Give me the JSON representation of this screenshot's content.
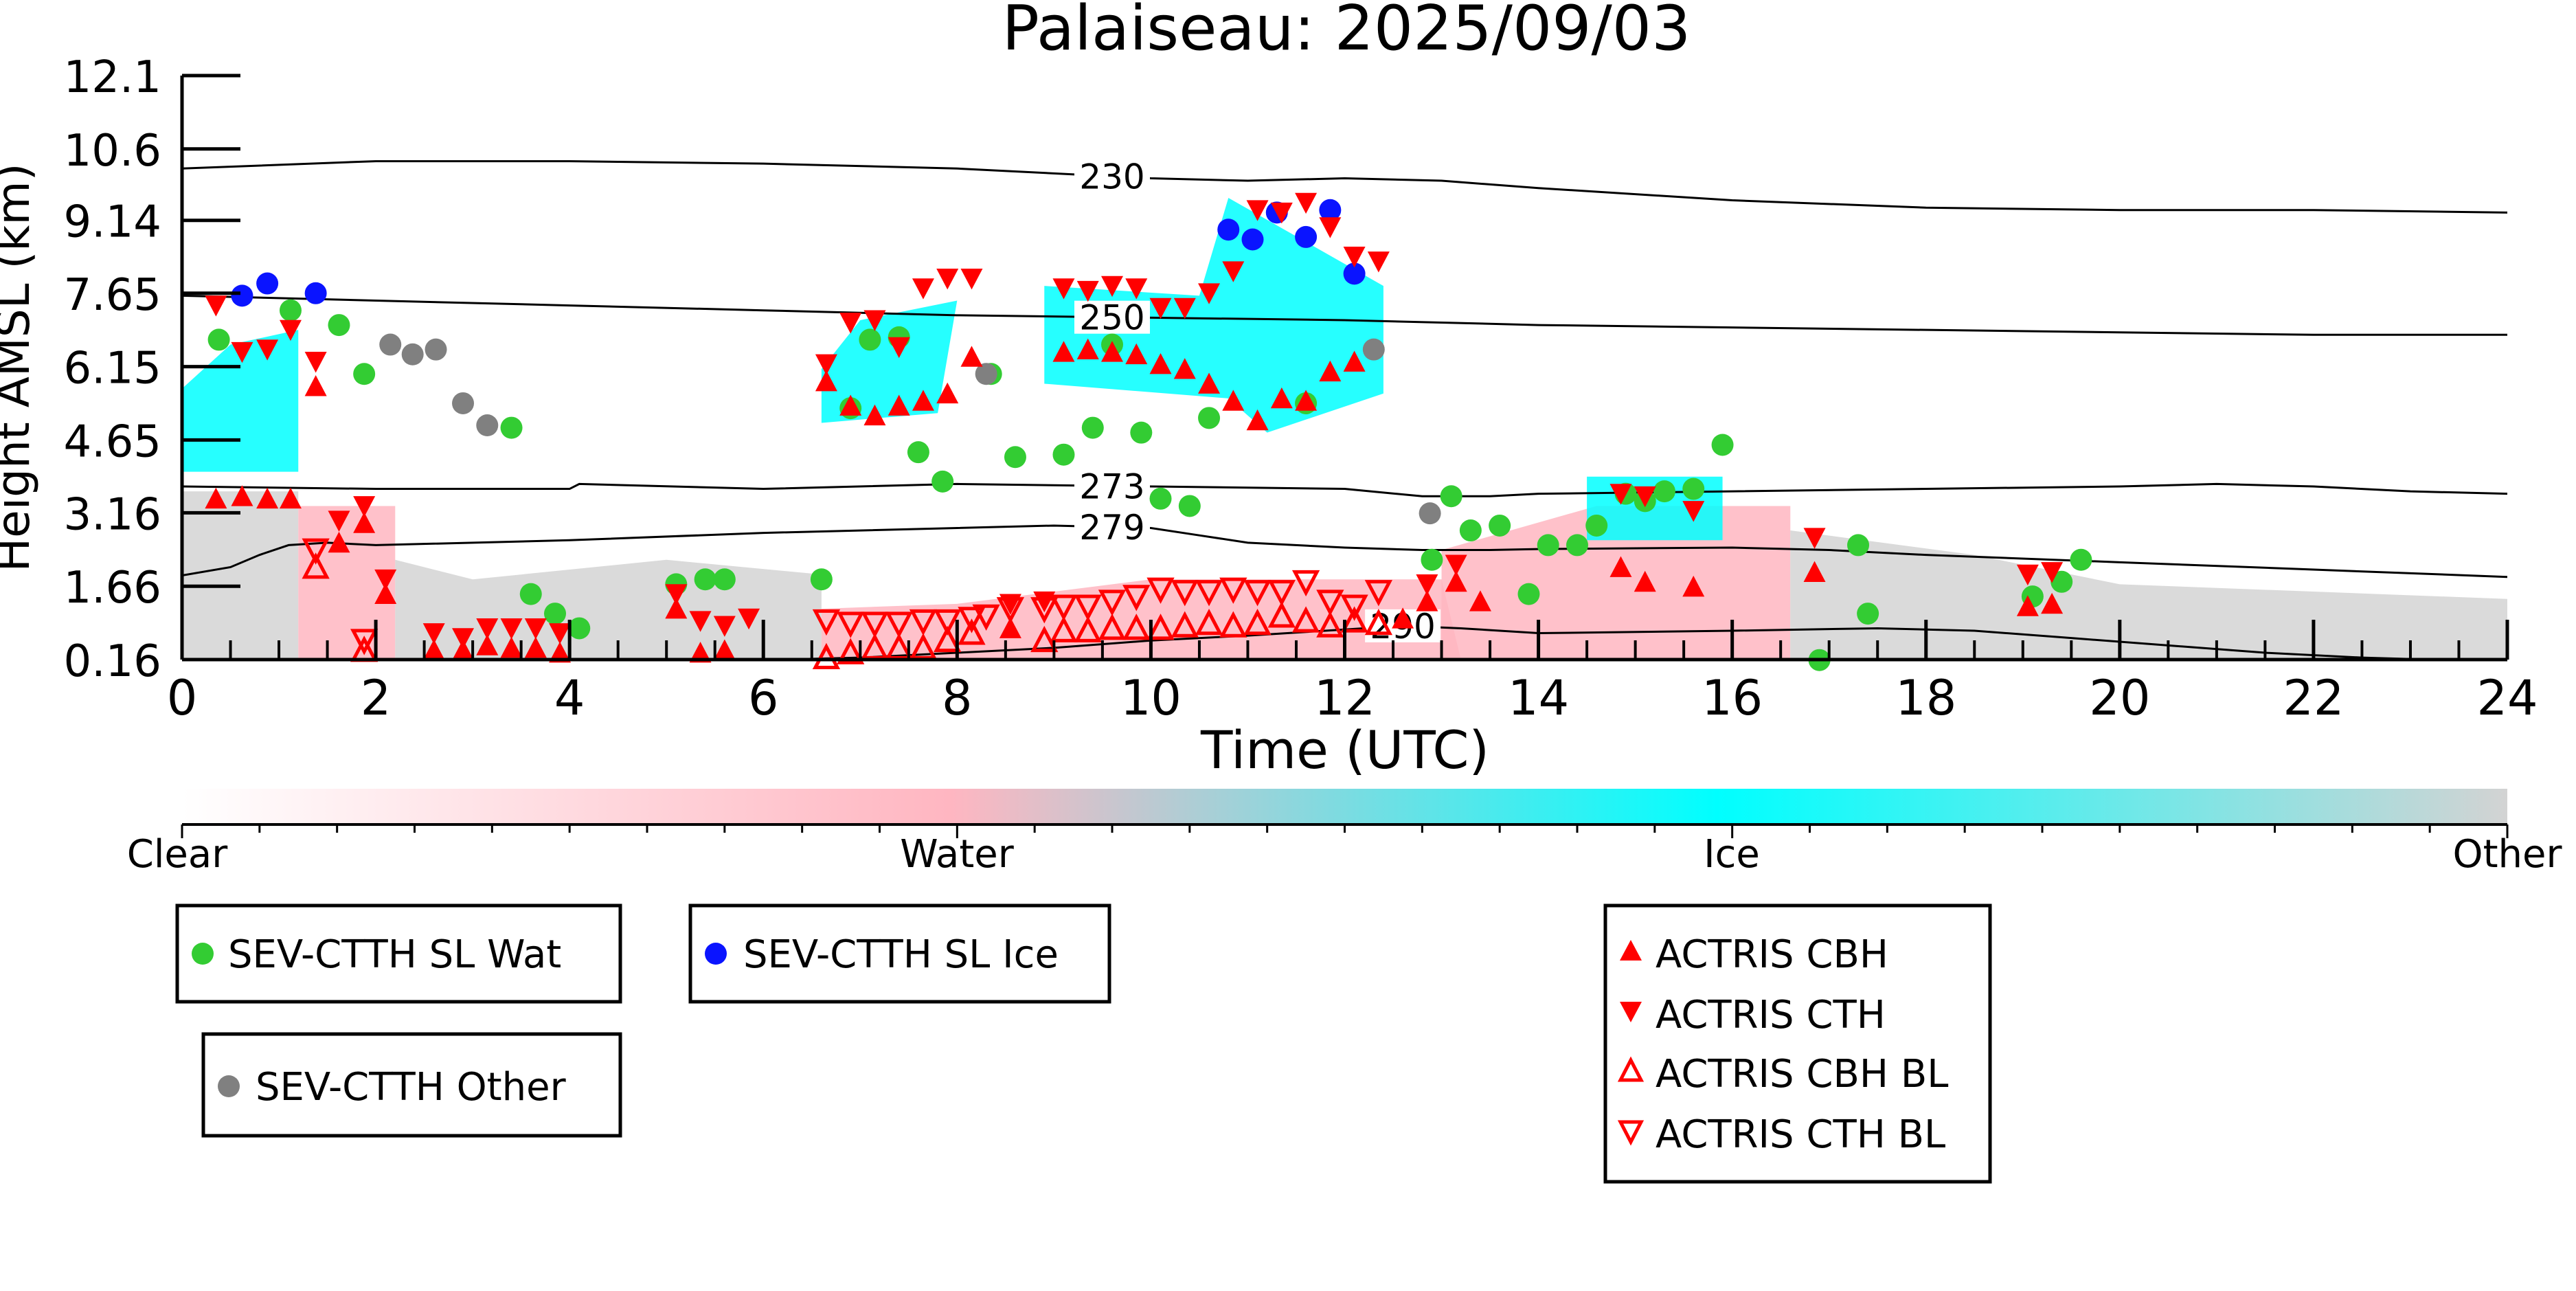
{
  "chart_data": {
    "type": "scatter",
    "title": "Palaiseau: 2025/09/03",
    "xlabel": "Time (UTC)",
    "ylabel": "Height AMSL (km)",
    "xlim": [
      0,
      24
    ],
    "ylim": [
      0.16,
      12.1
    ],
    "xticks": [
      "0",
      "2",
      "4",
      "6",
      "8",
      "10",
      "12",
      "14",
      "16",
      "18",
      "20",
      "22",
      "24"
    ],
    "xtick_values": [
      0,
      2,
      4,
      6,
      8,
      10,
      12,
      14,
      16,
      18,
      20,
      22,
      24
    ],
    "yticks": [
      "0.16",
      "1.66",
      "3.16",
      "4.65",
      "6.15",
      "7.65",
      "9.14",
      "10.6",
      "12.1"
    ],
    "ytick_values": [
      0.16,
      1.66,
      3.16,
      4.65,
      6.15,
      7.65,
      9.14,
      10.6,
      12.1
    ],
    "grid": false,
    "colorbar": {
      "labels": [
        "Clear",
        "Water",
        "Ice",
        "Other"
      ],
      "colors": [
        "#ffffff",
        "#ffb6c1",
        "#00ffff",
        "#d3d3d3"
      ]
    },
    "contours": [
      {
        "label": "230",
        "label_x": 9.6,
        "x": [
          0,
          2,
          4,
          6,
          8,
          10,
          11,
          12,
          13,
          14,
          16,
          18,
          20,
          22,
          24
        ],
        "y": [
          10.2,
          10.35,
          10.35,
          10.3,
          10.2,
          10.0,
          9.95,
          10.0,
          9.95,
          9.8,
          9.55,
          9.4,
          9.35,
          9.35,
          9.3
        ]
      },
      {
        "label": "250",
        "label_x": 9.6,
        "x": [
          0,
          2,
          4,
          6,
          8,
          10,
          12,
          14,
          16,
          18,
          20,
          22,
          24
        ],
        "y": [
          7.6,
          7.5,
          7.4,
          7.3,
          7.2,
          7.15,
          7.1,
          7.0,
          6.95,
          6.9,
          6.85,
          6.8,
          6.8
        ]
      },
      {
        "label": "273",
        "label_x": 9.6,
        "x": [
          0,
          2,
          4,
          4.1,
          6,
          8,
          10,
          12,
          12.8,
          13.5,
          14,
          16,
          18,
          20,
          21,
          22,
          23,
          24
        ],
        "y": [
          3.7,
          3.65,
          3.65,
          3.75,
          3.65,
          3.75,
          3.7,
          3.65,
          3.5,
          3.5,
          3.55,
          3.6,
          3.65,
          3.7,
          3.75,
          3.7,
          3.6,
          3.55
        ]
      },
      {
        "label": "279",
        "label_x": 9.6,
        "x": [
          0,
          0.5,
          0.8,
          1.1,
          1.5,
          2,
          4,
          6,
          8,
          9,
          10,
          10.5,
          11,
          12,
          12.8,
          13.5,
          14,
          16,
          17,
          18,
          20,
          22,
          24
        ],
        "y": [
          1.88,
          2.05,
          2.3,
          2.5,
          2.55,
          2.5,
          2.6,
          2.75,
          2.85,
          2.9,
          2.85,
          2.7,
          2.55,
          2.45,
          2.4,
          2.4,
          2.42,
          2.45,
          2.4,
          2.3,
          2.15,
          2.0,
          1.85
        ]
      },
      {
        "label": "290",
        "label_x": 12.6,
        "x": [
          6.2,
          7,
          8,
          9,
          10,
          11,
          11.8,
          12.6,
          13.2,
          14,
          16,
          17.5,
          18.5,
          19.5,
          20.5,
          21.5,
          22.5,
          23.2
        ],
        "y": [
          0.16,
          0.2,
          0.3,
          0.4,
          0.55,
          0.65,
          0.75,
          0.85,
          0.8,
          0.7,
          0.75,
          0.8,
          0.75,
          0.6,
          0.45,
          0.3,
          0.2,
          0.16
        ]
      }
    ],
    "series": [
      {
        "name": "SEV-CTTH SL Wat",
        "marker": "circle",
        "color": "#33cc33",
        "x": [
          0.38,
          1.12,
          1.62,
          1.88,
          3.4,
          3.6,
          3.85,
          4.1,
          5.1,
          5.4,
          5.6,
          6.6,
          6.9,
          7.1,
          7.4,
          7.6,
          7.85,
          8.35,
          8.6,
          9.1,
          9.4,
          9.6,
          9.9,
          10.1,
          10.4,
          10.6,
          11.6,
          12.9,
          13.1,
          13.3,
          13.6,
          13.9,
          14.1,
          14.4,
          14.6,
          14.9,
          15.1,
          15.3,
          15.6,
          15.9,
          16.9,
          17.3,
          17.4,
          19.1,
          19.4,
          19.6
        ],
        "y": [
          6.7,
          7.3,
          7.0,
          6.0,
          4.9,
          1.5,
          1.1,
          0.8,
          1.7,
          1.8,
          1.8,
          1.8,
          5.3,
          6.7,
          6.75,
          4.4,
          3.8,
          6.0,
          4.3,
          4.35,
          4.9,
          6.6,
          4.8,
          3.45,
          3.3,
          5.1,
          5.4,
          2.2,
          3.5,
          2.8,
          2.9,
          1.5,
          2.5,
          2.5,
          2.9,
          3.55,
          3.4,
          3.6,
          3.65,
          4.55,
          0.15,
          2.5,
          1.1,
          1.45,
          1.75,
          2.2
        ]
      },
      {
        "name": "SEV-CTTH SL Ice",
        "marker": "circle",
        "color": "#0a14ff",
        "x": [
          0.62,
          0.88,
          1.38,
          10.8,
          11.05,
          11.3,
          11.6,
          11.85,
          12.1
        ],
        "y": [
          7.6,
          7.85,
          7.65,
          8.95,
          8.75,
          9.3,
          8.8,
          9.35,
          8.05
        ]
      },
      {
        "name": "SEV-CTTH Other",
        "marker": "circle",
        "color": "#808080",
        "x": [
          2.15,
          2.38,
          2.62,
          2.9,
          3.15,
          8.3,
          12.3,
          12.88
        ],
        "y": [
          6.6,
          6.4,
          6.5,
          5.4,
          4.95,
          6.0,
          6.5,
          3.15
        ]
      },
      {
        "name": "ACTRIS CBH",
        "marker": "triangle-up",
        "filled": true,
        "color": "#ff0000",
        "x": [
          0.35,
          0.62,
          0.88,
          1.12,
          1.38,
          1.62,
          1.88,
          2.1,
          2.6,
          2.9,
          3.15,
          3.4,
          3.65,
          3.9,
          5.1,
          5.35,
          5.6,
          6.65,
          6.9,
          7.15,
          7.4,
          7.65,
          7.9,
          8.15,
          8.55,
          9.1,
          9.35,
          9.6,
          9.85,
          10.1,
          10.35,
          10.6,
          10.85,
          11.1,
          11.35,
          11.6,
          11.85,
          12.1,
          12.6,
          12.85,
          13.15,
          13.4,
          14.85,
          15.1,
          15.6,
          16.85,
          19.05,
          19.3
        ],
        "y": [
          3.45,
          3.5,
          3.45,
          3.45,
          5.75,
          2.55,
          2.95,
          1.5,
          0.35,
          0.35,
          0.45,
          0.4,
          0.4,
          0.3,
          1.2,
          0.3,
          0.35,
          5.85,
          5.35,
          5.15,
          5.35,
          5.45,
          5.6,
          6.35,
          0.8,
          6.45,
          6.5,
          6.45,
          6.4,
          6.2,
          6.1,
          5.8,
          5.45,
          5.05,
          5.5,
          5.45,
          6.05,
          6.25,
          1.0,
          1.35,
          1.75,
          1.35,
          2.05,
          1.75,
          1.65,
          1.95,
          1.25,
          1.3
        ]
      },
      {
        "name": "ACTRIS CTH",
        "marker": "triangle-down",
        "filled": true,
        "color": "#ff0000",
        "x": [
          0.35,
          0.62,
          0.88,
          1.12,
          1.38,
          1.62,
          1.88,
          2.1,
          2.6,
          2.9,
          3.15,
          3.4,
          3.65,
          3.9,
          5.1,
          5.35,
          5.6,
          5.85,
          6.65,
          6.9,
          7.15,
          7.4,
          7.65,
          7.9,
          8.15,
          8.55,
          8.9,
          9.1,
          9.35,
          9.6,
          9.85,
          10.1,
          10.35,
          10.6,
          10.85,
          11.1,
          11.35,
          11.6,
          11.85,
          12.1,
          12.35,
          12.85,
          13.15,
          14.85,
          15.1,
          15.6,
          16.85,
          19.05,
          19.3
        ],
        "y": [
          7.4,
          6.45,
          6.5,
          6.9,
          6.25,
          3.0,
          3.3,
          1.8,
          0.7,
          0.6,
          0.8,
          0.8,
          0.8,
          0.7,
          1.5,
          0.95,
          0.85,
          1.0,
          6.2,
          7.05,
          7.1,
          6.55,
          7.75,
          7.95,
          7.95,
          1.3,
          1.35,
          7.75,
          7.7,
          7.8,
          7.75,
          7.35,
          7.35,
          7.65,
          8.1,
          9.35,
          9.3,
          9.5,
          9.0,
          8.4,
          8.3,
          1.7,
          2.1,
          3.55,
          3.5,
          3.2,
          2.65,
          1.9,
          1.95
        ]
      },
      {
        "name": "ACTRIS CBH BL",
        "marker": "triangle-up",
        "filled": false,
        "color": "#ff0000",
        "x": [
          1.38,
          1.88,
          6.65,
          6.9,
          7.15,
          7.4,
          7.65,
          7.9,
          8.15,
          8.9,
          9.1,
          9.35,
          9.6,
          9.85,
          10.1,
          10.35,
          10.6,
          10.85,
          11.1,
          11.35,
          11.6,
          11.85,
          12.1,
          12.35
        ],
        "y": [
          2.05,
          0.35,
          0.2,
          0.3,
          0.4,
          0.4,
          0.4,
          0.55,
          0.7,
          0.55,
          0.75,
          0.75,
          0.8,
          0.8,
          0.8,
          0.85,
          0.9,
          0.85,
          0.9,
          1.05,
          0.95,
          0.85,
          0.95,
          0.9
        ]
      },
      {
        "name": "ACTRIS CTH BL",
        "marker": "triangle-down",
        "filled": false,
        "color": "#ff0000",
        "x": [
          1.38,
          1.88,
          6.65,
          6.9,
          7.15,
          7.4,
          7.65,
          7.9,
          8.15,
          8.3,
          8.55,
          8.9,
          9.1,
          9.35,
          9.6,
          9.85,
          10.1,
          10.35,
          10.6,
          10.85,
          11.1,
          11.35,
          11.6,
          11.85,
          12.1,
          12.35
        ],
        "y": [
          2.4,
          0.55,
          0.95,
          0.9,
          0.9,
          0.9,
          0.95,
          0.95,
          1.0,
          1.05,
          1.2,
          1.2,
          1.25,
          1.25,
          1.35,
          1.45,
          1.6,
          1.55,
          1.55,
          1.6,
          1.55,
          1.55,
          1.75,
          1.35,
          1.25,
          1.55
        ]
      }
    ],
    "legends": [
      {
        "items": [
          "SEV-CTTH SL Wat"
        ]
      },
      {
        "items": [
          "SEV-CTTH SL Ice"
        ]
      },
      {
        "items": [
          "SEV-CTTH Other"
        ]
      },
      {
        "items": [
          "ACTRIS CBH",
          "ACTRIS CTH",
          "ACTRIS CBH BL",
          "ACTRIS CTH BL"
        ]
      }
    ]
  }
}
